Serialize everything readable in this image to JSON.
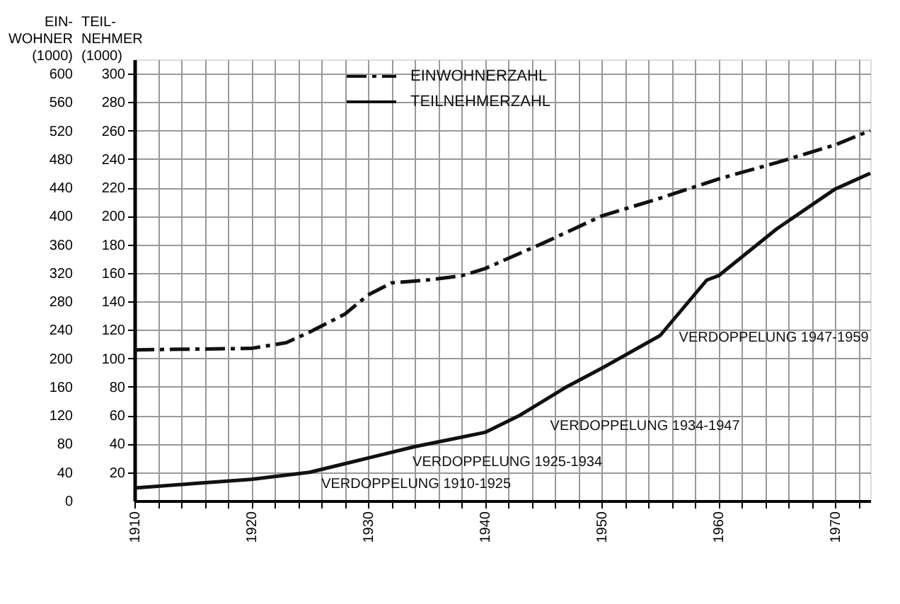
{
  "chart_data": {
    "type": "line",
    "ylabel": "EIN-\nWOHNER\n(1000)",
    "y2label": "TEIL-\nNEHMER\n(1000)",
    "x": [
      1910,
      1915,
      1920,
      1923,
      1925,
      1928,
      1930,
      1932,
      1935,
      1938,
      1940,
      1945,
      1950,
      1955,
      1960,
      1965,
      1970,
      1973
    ],
    "series": [
      {
        "name": "EINWOHNERZAHL",
        "color": "#111111",
        "line_style": "dashed",
        "values": [
          212,
          213,
          214,
          222,
          237,
          262,
          289,
          306,
          310,
          316,
          326,
          362,
          400,
          425,
          452,
          475,
          500,
          520
        ]
      },
      {
        "name": "TEILNEHMERZAHL",
        "color": "#111111",
        "line_style": "solid",
        "axis": "y2",
        "x": [
          1910,
          1915,
          1920,
          1925,
          1930,
          1934,
          1937,
          1940,
          1943,
          1947,
          1950,
          1955,
          1959,
          1960,
          1965,
          1970,
          1973
        ],
        "values": [
          9,
          12,
          15,
          20,
          30,
          38,
          43,
          48,
          60,
          80,
          93,
          116,
          155,
          158,
          191,
          219,
          230
        ]
      }
    ],
    "xlim": [
      1910,
      1973
    ],
    "ylim": [
      0,
      620
    ],
    "y2lim": [
      0,
      310
    ],
    "xticks": [
      1910,
      {
        "value": 1912,
        "label": null
      },
      {
        "value": 1914,
        "label": null
      },
      {
        "value": 1916,
        "label": null
      },
      {
        "value": 1918,
        "label": null
      },
      1920,
      {
        "value": 1922,
        "label": null
      },
      {
        "value": 1924,
        "label": null
      },
      {
        "value": 1926,
        "label": null
      },
      {
        "value": 1928,
        "label": null
      },
      1930,
      {
        "value": 1932,
        "label": null
      },
      {
        "value": 1934,
        "label": null
      },
      {
        "value": 1936,
        "label": null
      },
      {
        "value": 1938,
        "label": null
      },
      1940,
      {
        "value": 1942,
        "label": null
      },
      {
        "value": 1944,
        "label": null
      },
      {
        "value": 1946,
        "label": null
      },
      {
        "value": 1948,
        "label": null
      },
      1950,
      {
        "value": 1952,
        "label": null
      },
      {
        "value": 1954,
        "label": null
      },
      {
        "value": 1956,
        "label": null
      },
      {
        "value": 1958,
        "label": null
      },
      1960,
      {
        "value": 1962,
        "label": null
      },
      {
        "value": 1964,
        "label": null
      },
      {
        "value": 1966,
        "label": null
      },
      {
        "value": 1968,
        "label": null
      },
      1970,
      {
        "value": 1972,
        "label": null
      }
    ],
    "yticks": [
      0,
      40,
      80,
      120,
      160,
      200,
      240,
      280,
      320,
      360,
      400,
      440,
      480,
      520,
      560,
      600
    ],
    "y2ticks": [
      20,
      40,
      60,
      80,
      100,
      120,
      140,
      160,
      180,
      200,
      220,
      240,
      260,
      280,
      300
    ],
    "annotations": [
      "VERDOPPELUNG 1910-1925",
      "VERDOPPELUNG 1925-1934",
      "VERDOPPELUNG 1934-1947",
      "VERDOPPELUNG 1947-1959"
    ],
    "grid": true,
    "legend": "top",
    "marker": "none"
  }
}
